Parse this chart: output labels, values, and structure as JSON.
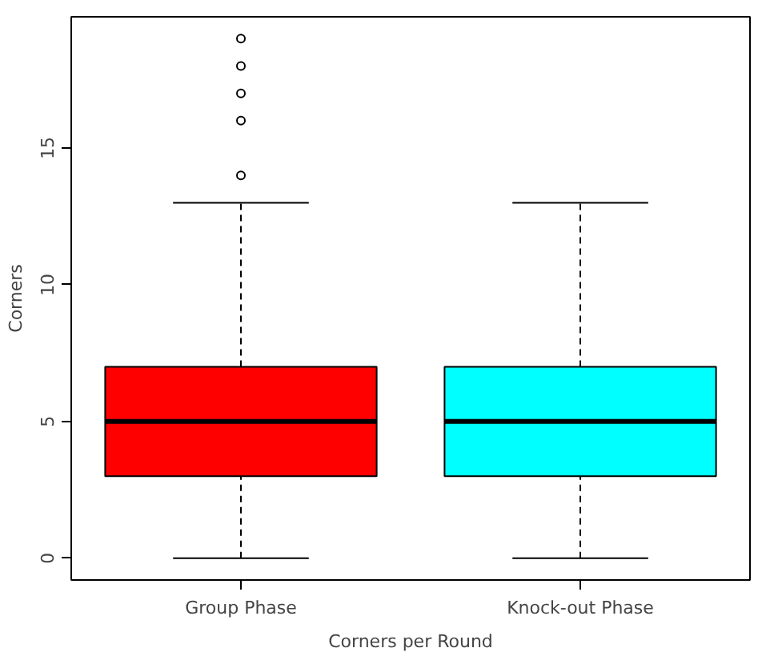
{
  "chart_data": {
    "type": "box",
    "xlabel": "Corners per Round",
    "ylabel": "Corners",
    "categories": [
      "Group Phase",
      "Knock-out Phase"
    ],
    "colors": [
      "#ff0000",
      "#00ffff"
    ],
    "boxes": [
      {
        "low": 0,
        "q1": 3,
        "median": 5,
        "q3": 7,
        "high": 13,
        "outliers": [
          14,
          16,
          17,
          18,
          19
        ]
      },
      {
        "low": 0,
        "q1": 3,
        "median": 5,
        "q3": 7,
        "high": 13
      }
    ],
    "ylim": [
      -0.8,
      19.8
    ],
    "yticks": [
      0,
      5,
      10,
      15
    ],
    "grid": false,
    "marker": "circle"
  }
}
